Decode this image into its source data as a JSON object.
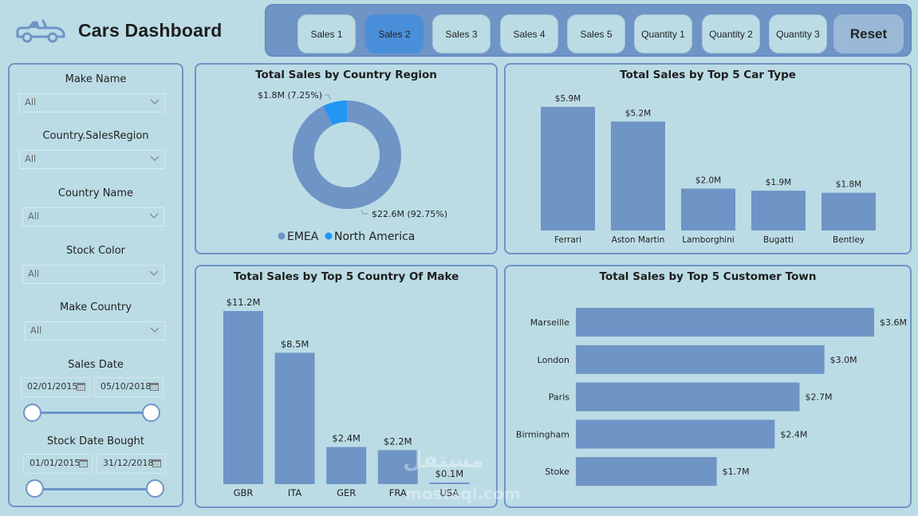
{
  "header": {
    "title": "Cars Dashboard",
    "logo_icon": "car-convertible-icon"
  },
  "nav": {
    "buttons": [
      {
        "label": "Sales 1",
        "active": false
      },
      {
        "label": "Sales 2",
        "active": true
      },
      {
        "label": "Sales 3",
        "active": false
      },
      {
        "label": "Sales 4",
        "active": false
      },
      {
        "label": "Sales 5",
        "active": false
      },
      {
        "label": "Quantity 1",
        "active": false
      },
      {
        "label": "Quantity 2",
        "active": false
      },
      {
        "label": "Quantity 3",
        "active": false
      }
    ],
    "reset_label": "Reset"
  },
  "filters": {
    "make_name": {
      "label": "Make Name",
      "value": "All"
    },
    "sales_region": {
      "label": "Country.SalesRegion",
      "value": "All"
    },
    "country_name": {
      "label": "Country Name",
      "value": "All"
    },
    "stock_color": {
      "label": "Stock Color",
      "value": "All"
    },
    "make_country": {
      "label": "Make Country",
      "value": "All"
    },
    "sales_date": {
      "label": "Sales Date",
      "start": "02/01/2015",
      "end": "05/10/2018"
    },
    "stock_date_bought": {
      "label": "Stock Date Bought",
      "start": "01/01/2015",
      "end": "31/12/2018"
    }
  },
  "colors": {
    "bar": "#6f94c6",
    "emea": "#6f94c6",
    "north_america": "#2196f3",
    "active_button": "#4a8fd9",
    "background": "#bbdce5"
  },
  "watermark": {
    "arabic": "مستقل",
    "latin": "mostaql.com"
  },
  "chart_data": [
    {
      "id": "region",
      "type": "pie",
      "title": "Total Sales by Country Region",
      "slices": [
        {
          "name": "North America",
          "value": 1.8,
          "percent": 7.25,
          "label": "$1.8M (7.25%)",
          "color": "#2196f3"
        },
        {
          "name": "EMEA",
          "value": 22.6,
          "percent": 92.75,
          "label": "$22.6M (92.75%)",
          "color": "#6f94c6"
        }
      ],
      "legend": [
        "EMEA",
        "North America"
      ],
      "legend_position": "bottom",
      "units": "$M"
    },
    {
      "id": "cartype",
      "type": "bar",
      "title": "Total Sales by Top 5 Car Type",
      "categories": [
        "Ferrari",
        "Aston Martin",
        "Lamborghini",
        "Bugatti",
        "Bentley"
      ],
      "values": [
        5.9,
        5.2,
        2.0,
        1.9,
        1.8
      ],
      "labels": [
        "$5.9M",
        "$5.2M",
        "$2.0M",
        "$1.9M",
        "$1.8M"
      ],
      "xlabel": "",
      "ylabel": "",
      "ylim": [
        0,
        5.9
      ],
      "grid": false
    },
    {
      "id": "makecountry",
      "type": "bar",
      "title": "Total Sales by Top 5 Country Of Make",
      "categories": [
        "GBR",
        "ITA",
        "GER",
        "FRA",
        "USA"
      ],
      "values": [
        11.2,
        8.5,
        2.4,
        2.2,
        0.1
      ],
      "labels": [
        "$11.2M",
        "$8.5M",
        "$2.4M",
        "$2.2M",
        "$0.1M"
      ],
      "xlabel": "",
      "ylabel": "",
      "ylim": [
        0,
        11.2
      ],
      "grid": false
    },
    {
      "id": "town",
      "type": "bar",
      "orientation": "horizontal",
      "title": "Total Sales by Top 5 Customer Town",
      "categories": [
        "Marseille",
        "London",
        "Paris",
        "Birmingham",
        "Stoke"
      ],
      "values": [
        3.6,
        3.0,
        2.7,
        2.4,
        1.7
      ],
      "labels": [
        "$3.6M",
        "$3.0M",
        "$2.7M",
        "$2.4M",
        "$1.7M"
      ],
      "xlabel": "",
      "ylabel": "",
      "xlim": [
        0,
        3.6
      ],
      "grid": false
    }
  ]
}
